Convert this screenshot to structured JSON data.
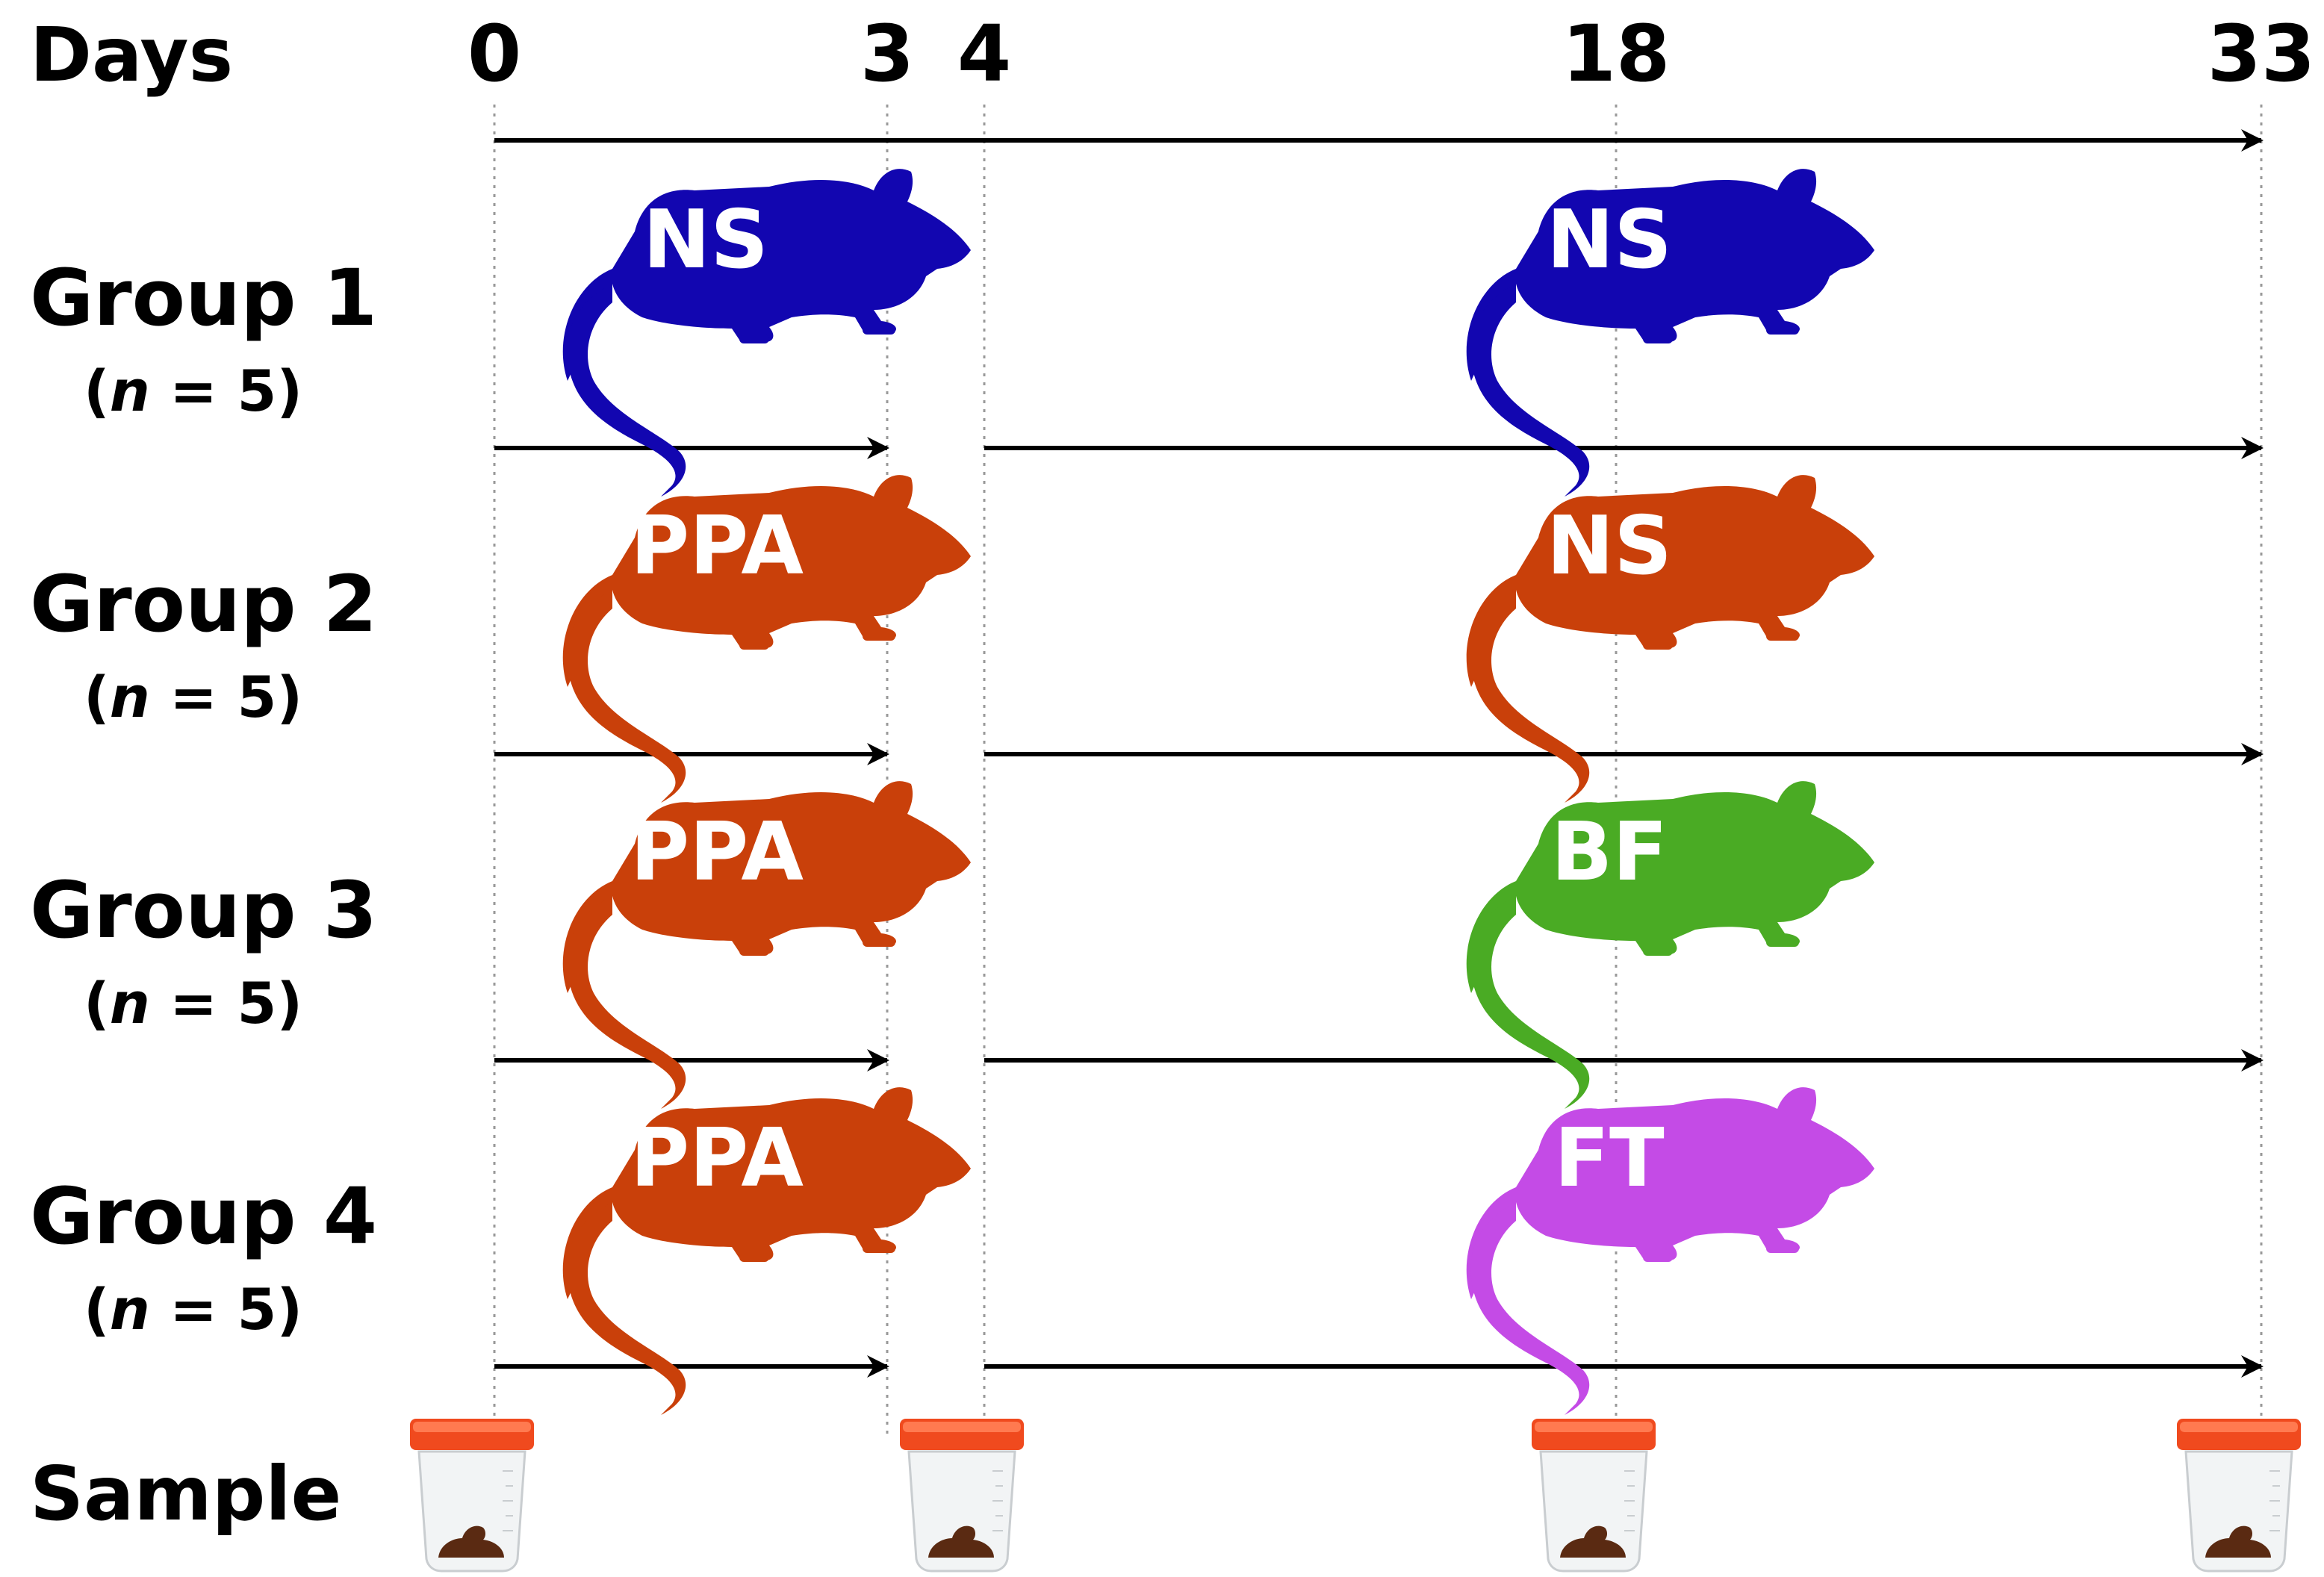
{
  "header": {
    "label": "Days"
  },
  "days": [
    "0",
    "3",
    "4",
    "18",
    "33"
  ],
  "groups": [
    {
      "name": "Group 1",
      "n_prefix": "(",
      "n_var": "n",
      "n_suffix": " = 5)",
      "phase1": {
        "label": "NS",
        "color": "#1206b0",
        "bolt": false
      },
      "phase2": {
        "label": "NS",
        "color": "#1206b0",
        "bolt": false
      }
    },
    {
      "name": "Group 2",
      "n_prefix": "(",
      "n_var": "n",
      "n_suffix": " = 5)",
      "phase1": {
        "label": "PPA",
        "color": "#c9400a",
        "bolt": true
      },
      "phase2": {
        "label": "NS",
        "color": "#c9400a",
        "bolt": false
      }
    },
    {
      "name": "Group 3",
      "n_prefix": "(",
      "n_var": "n",
      "n_suffix": " = 5)",
      "phase1": {
        "label": "PPA",
        "color": "#c9400a",
        "bolt": true
      },
      "phase2": {
        "label": "BF",
        "color": "#4aab24",
        "bolt": false
      }
    },
    {
      "name": "Group 4",
      "n_prefix": "(",
      "n_var": "n",
      "n_suffix": " = 5)",
      "phase1": {
        "label": "PPA",
        "color": "#c9400a",
        "bolt": true
      },
      "phase2": {
        "label": "FT",
        "color": "#c44be6",
        "bolt": false
      }
    }
  ],
  "sample": {
    "label": "Sample",
    "days": [
      "0",
      "4",
      "18",
      "33"
    ]
  },
  "colors": {
    "cup_lid": "#f04a1e",
    "stool": "#5a2a12",
    "line": "#000000",
    "guide": "#999999"
  }
}
